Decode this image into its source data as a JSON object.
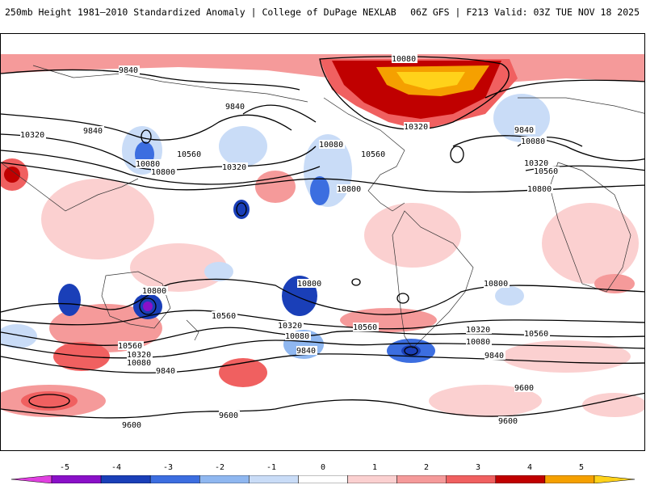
{
  "header": {
    "left_title": "250mb Height 1981–2010 Standardized Anomaly | College of DuPage NEXLAB",
    "right_title": "06Z GFS | F213 Valid: 03Z TUE NOV 18 2025"
  },
  "map": {
    "contour_labels": [
      {
        "text": "9840"
      },
      {
        "text": "10080"
      },
      {
        "text": "9840"
      },
      {
        "text": "10320"
      },
      {
        "text": "9840"
      },
      {
        "text": "10080"
      },
      {
        "text": "10560"
      },
      {
        "text": "10320"
      },
      {
        "text": "10800"
      },
      {
        "text": "10080"
      },
      {
        "text": "10560"
      },
      {
        "text": "10320"
      },
      {
        "text": "10800"
      },
      {
        "text": "9840"
      },
      {
        "text": "10080"
      },
      {
        "text": "10320"
      },
      {
        "text": "10560"
      },
      {
        "text": "10800"
      },
      {
        "text": "10800"
      },
      {
        "text": "10800"
      },
      {
        "text": "10800"
      },
      {
        "text": "10560"
      },
      {
        "text": "10320"
      },
      {
        "text": "10080"
      },
      {
        "text": "9840"
      },
      {
        "text": "10560"
      },
      {
        "text": "10320"
      },
      {
        "text": "10560"
      },
      {
        "text": "10320"
      },
      {
        "text": "10080"
      },
      {
        "text": "9840"
      },
      {
        "text": "10080"
      },
      {
        "text": "9840"
      },
      {
        "text": "9600"
      },
      {
        "text": "9600"
      },
      {
        "text": "9600"
      },
      {
        "text": "9600"
      },
      {
        "text": "10560"
      }
    ]
  },
  "colorbar": {
    "labels": [
      "-5",
      "-4",
      "-3",
      "-2",
      "-1",
      "0",
      "1",
      "2",
      "3",
      "4",
      "5"
    ],
    "colors": [
      "#e040e0",
      "#8a10c8",
      "#1a3fb8",
      "#3c6ee0",
      "#8fb7f0",
      "#c9dcf7",
      "#ffffff",
      "#fbd0d0",
      "#f59a9a",
      "#f06060",
      "#c00000",
      "#f5a000",
      "#ffd21a"
    ]
  }
}
